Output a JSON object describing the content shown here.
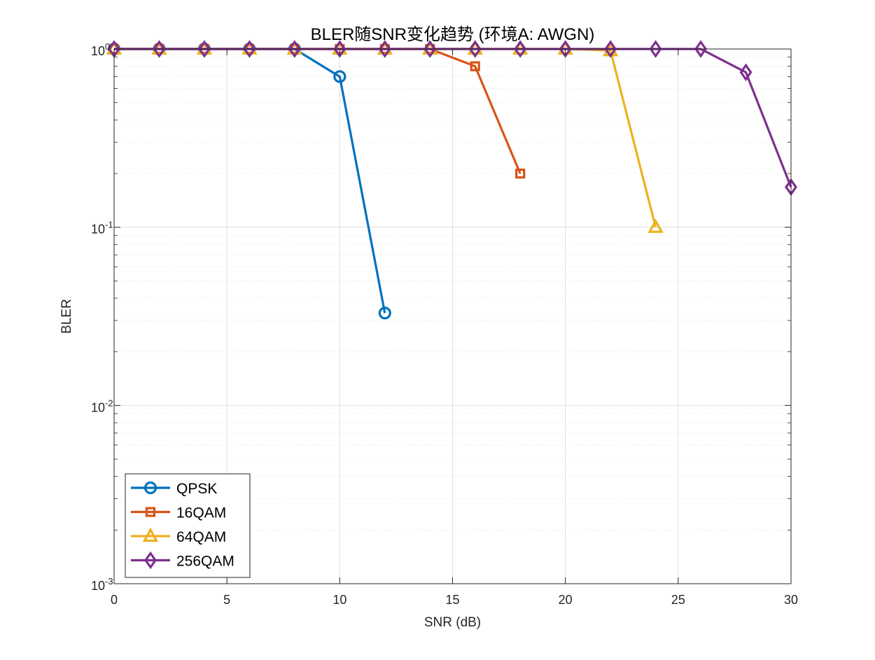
{
  "chart_data": {
    "type": "line",
    "title": "BLER随SNR变化趋势 (环境A: AWGN)",
    "xlabel": "SNR (dB)",
    "ylabel": "BLER",
    "xlim": [
      0,
      30
    ],
    "ylim": [
      0.001,
      1
    ],
    "yscale": "log",
    "grid": true,
    "minor_grid": true,
    "legend_location": "bottom-left",
    "x_ticks": [
      "0",
      "5",
      "10",
      "15",
      "20",
      "25",
      "30"
    ],
    "y_ticks": [
      {
        "value": 1,
        "base": "10",
        "exp": "0"
      },
      {
        "value": 0.1,
        "base": "10",
        "exp": "-1"
      },
      {
        "value": 0.01,
        "base": "10",
        "exp": "-2"
      },
      {
        "value": 0.001,
        "base": "10",
        "exp": "-3"
      }
    ],
    "series": [
      {
        "name": "QPSK",
        "color": "#0072BD",
        "marker": "circle",
        "x": [
          0,
          2,
          4,
          6,
          8,
          10,
          12
        ],
        "y": [
          1,
          1,
          1,
          1,
          1,
          0.7,
          0.033
        ]
      },
      {
        "name": "16QAM",
        "color": "#D95319",
        "marker": "square",
        "x": [
          0,
          2,
          4,
          6,
          8,
          10,
          12,
          14,
          16,
          18
        ],
        "y": [
          1,
          1,
          1,
          1,
          1,
          1,
          1,
          1,
          0.8,
          0.2
        ]
      },
      {
        "name": "64QAM",
        "color": "#EDB120",
        "marker": "triangle",
        "x": [
          0,
          2,
          4,
          6,
          8,
          10,
          12,
          14,
          16,
          18,
          20,
          22,
          24
        ],
        "y": [
          1,
          1,
          1,
          1,
          1,
          1,
          1,
          1,
          1,
          1,
          1,
          0.98,
          0.1
        ]
      },
      {
        "name": "256QAM",
        "color": "#7E2F8E",
        "marker": "diamond",
        "x": [
          0,
          2,
          4,
          6,
          8,
          10,
          12,
          14,
          16,
          18,
          20,
          22,
          24,
          26,
          28,
          30
        ],
        "y": [
          1,
          1,
          1,
          1,
          1,
          1,
          1,
          1,
          1,
          1,
          1,
          1,
          1,
          1,
          0.74,
          0.168
        ]
      }
    ]
  }
}
